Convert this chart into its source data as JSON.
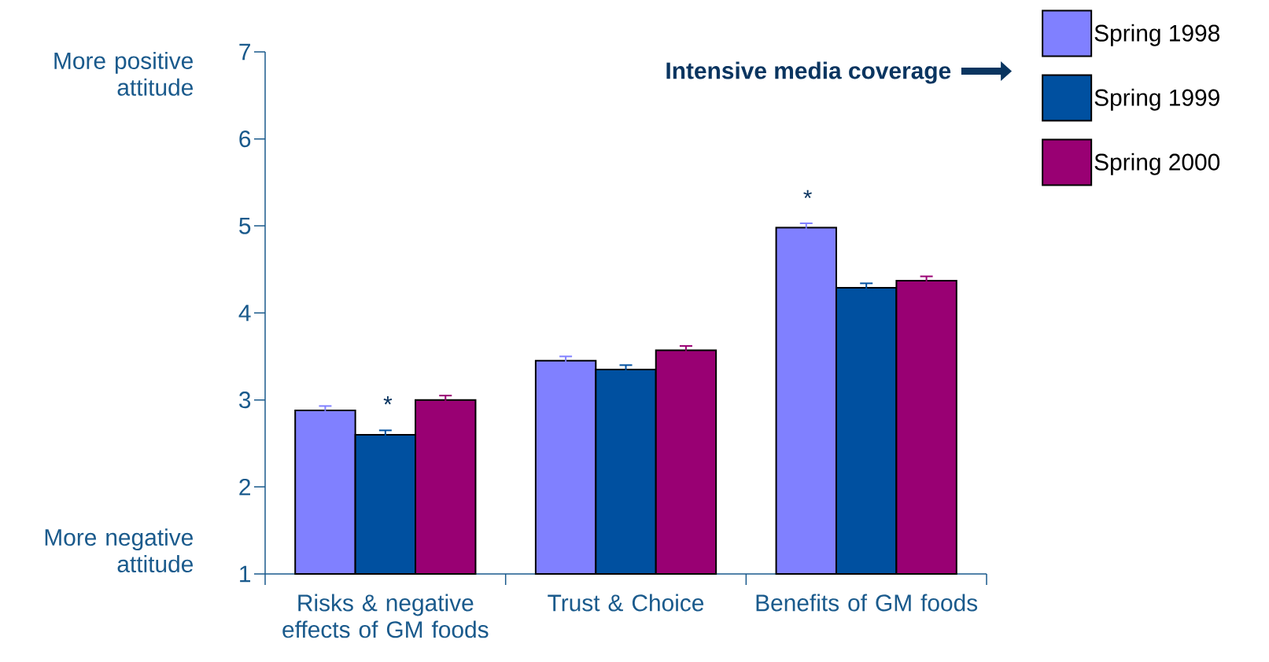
{
  "chart_data": {
    "type": "bar",
    "categories": [
      "Risks & negative effects of GM foods",
      "Trust & Choice",
      "Benefits of GM foods"
    ],
    "series": [
      {
        "name": "Spring 1998",
        "color": "#8080ff",
        "values": [
          2.88,
          3.45,
          4.98
        ],
        "errors": [
          0.05,
          0.05,
          0.05
        ]
      },
      {
        "name": "Spring 1999",
        "color": "#0050a0",
        "values": [
          2.6,
          3.35,
          4.29
        ],
        "errors": [
          0.05,
          0.05,
          0.05
        ]
      },
      {
        "name": "Spring 2000",
        "color": "#990073",
        "values": [
          3.0,
          3.57,
          4.37
        ],
        "errors": [
          0.05,
          0.05,
          0.05
        ]
      }
    ],
    "ylim": [
      1,
      7
    ],
    "yticks": [
      1,
      2,
      3,
      4,
      5,
      6,
      7
    ],
    "legend": "top right",
    "grid": false,
    "annotations": [
      "More positive attitude",
      "More negative attitude",
      "Intensive media coverage",
      "*",
      "*"
    ]
  }
}
